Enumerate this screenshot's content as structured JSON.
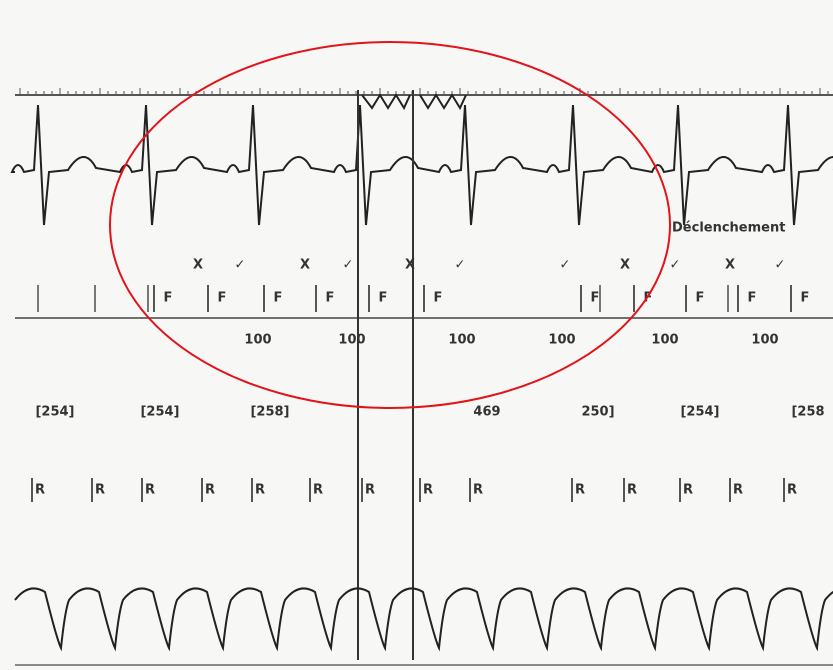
{
  "marks": [
    "X",
    "✓",
    "X",
    "✓",
    "X",
    "✓",
    "✓",
    "X",
    "✓",
    "X",
    "✓"
  ],
  "event_label": "Déclenchement",
  "f_markers": [
    "F",
    "F",
    "F",
    "F",
    "F",
    "F",
    "F",
    "F",
    "F",
    "F",
    "F"
  ],
  "rates": [
    "100",
    "100",
    "100",
    "100",
    "100",
    "100"
  ],
  "intervals": [
    "[254]",
    "[254]",
    "[258]",
    "469",
    "250]",
    "[254]",
    "[258"
  ],
  "r_markers": [
    "R",
    "R",
    "R",
    "R",
    "R",
    "R",
    "R",
    "R",
    "R",
    "R",
    "R",
    "R",
    "R",
    "R"
  ]
}
